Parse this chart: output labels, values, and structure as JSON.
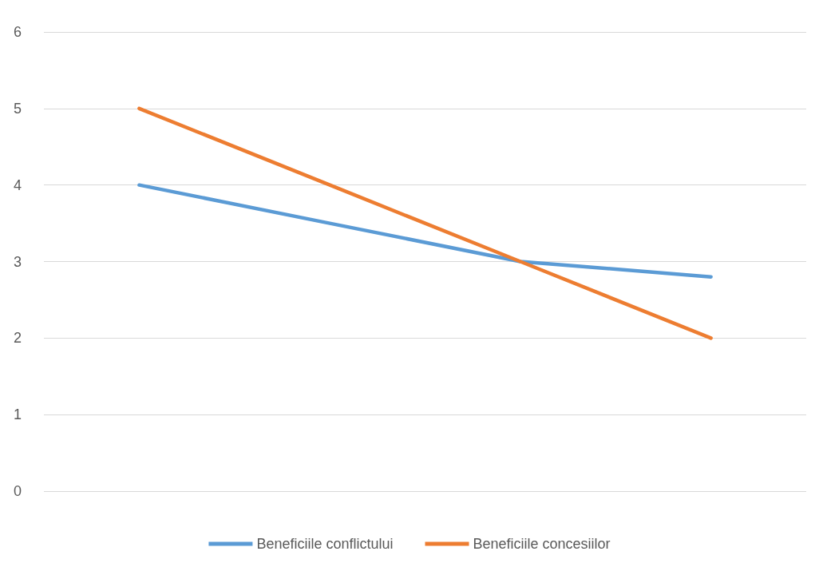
{
  "chart_data": {
    "type": "line",
    "categories": [
      null,
      null,
      null,
      null
    ],
    "series": [
      {
        "name": "Beneficiile conflictului",
        "color": "#5b9bd5",
        "values": [
          4,
          3.5,
          3,
          2.8
        ]
      },
      {
        "name": "Beneficiile concesiilor",
        "color": "#ed7d31",
        "values": [
          5,
          4,
          3,
          2
        ]
      }
    ],
    "ylim": [
      0,
      6
    ],
    "yticks": [
      0,
      1,
      2,
      3,
      4,
      5,
      6
    ],
    "grid": "y",
    "legend": "bottom",
    "marker": "none",
    "line_style": "solid"
  }
}
